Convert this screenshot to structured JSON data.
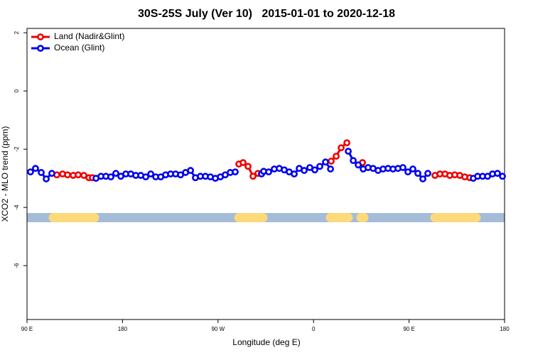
{
  "chart_data": {
    "type": "line",
    "title": "30S-25S July (Ver 10)   2015-01-01 to 2020-12-18",
    "x_label": "Longitude (deg E)",
    "y_label": "XCO2 - MLO trend (ppm)",
    "xlim": [
      90,
      540
    ],
    "ylim": [
      -7.85,
      2.15
    ],
    "xticks": [
      {
        "value": 90,
        "label": "90 E"
      },
      180,
      {
        "value": 270,
        "label": "90 W"
      },
      {
        "value": 360,
        "label": "0"
      },
      {
        "value": 450,
        "label": "90 E"
      },
      {
        "value": 540,
        "label": "180"
      }
    ],
    "yticks": [
      -6,
      -4,
      -2,
      0,
      2
    ],
    "legend": "top-left",
    "series": [
      {
        "name": "Land (Nadir&Glint)",
        "color": "#ee0000",
        "x": [
          118.1,
          123.5,
          128.2,
          133.5,
          138.2,
          143.6,
          148.3,
          151.6,
          null,
          289.6,
          293.6,
          298.3,
          303,
          307.6,
          311,
          null,
          376.6,
          381.3,
          386,
          391.4,
          null,
          406.1,
          null,
          474.4,
          479.1,
          483.8,
          488.4,
          493.1,
          497.8,
          502.5,
          507.2
        ],
        "values": [
          -2.88,
          -2.85,
          -2.88,
          -2.9,
          -2.88,
          -2.9,
          -2.98,
          -2.98,
          null,
          -2.51,
          -2.46,
          -2.59,
          -2.93,
          -2.83,
          -2.83,
          null,
          -2.41,
          -2.24,
          -1.95,
          -1.78,
          null,
          -2.46,
          null,
          -2.9,
          -2.85,
          -2.85,
          -2.9,
          -2.88,
          -2.9,
          -2.95,
          -2.98
        ]
      },
      {
        "name": "Ocean (Glint)",
        "color": "#0000ee",
        "x": [
          93.3,
          98,
          103.4,
          108.1,
          113.4,
          null,
          155,
          159.7,
          164.3,
          169,
          173.7,
          178.4,
          183.1,
          187.8,
          192.5,
          197.2,
          201.9,
          206.6,
          211.3,
          216,
          220.6,
          225.3,
          230,
          234.7,
          239.4,
          244.1,
          248.7,
          253.4,
          258.1,
          262.8,
          267.5,
          272.2,
          276.8,
          281.5,
          286.2,
          null,
          311,
          313,
          317.7,
          323,
          327.7,
          332.4,
          337.1,
          341.8,
          346.5,
          351.2,
          356.5,
          361.2,
          365.9,
          371.3,
          376,
          null,
          392.7,
          397.4,
          402.1,
          406.8,
          411.4,
          416.1,
          420.8,
          425.5,
          430.2,
          434.9,
          439.6,
          444.2,
          448.9,
          453.6,
          458.3,
          463,
          467.7,
          null,
          510.5,
          514.6,
          519.3,
          524,
          528.6,
          533.3,
          538
        ],
        "values": [
          -2.78,
          -2.66,
          -2.8,
          -3.02,
          -2.83,
          null,
          -3,
          -2.93,
          -2.93,
          -2.95,
          -2.83,
          -2.93,
          -2.85,
          -2.85,
          -2.9,
          -2.9,
          -2.95,
          -2.85,
          -2.95,
          -2.95,
          -2.88,
          -2.85,
          -2.85,
          -2.88,
          -2.8,
          -2.73,
          -2.98,
          -2.93,
          -2.93,
          -2.95,
          -3,
          -2.95,
          -2.88,
          -2.8,
          -2.78,
          null,
          -2.85,
          -2.76,
          -2.78,
          -2.68,
          -2.66,
          -2.71,
          -2.78,
          -2.85,
          -2.66,
          -2.73,
          -2.63,
          -2.71,
          -2.59,
          -2.44,
          -2.68,
          null,
          -2.07,
          -2.39,
          -2.54,
          -2.68,
          -2.63,
          -2.66,
          -2.73,
          -2.68,
          -2.66,
          -2.68,
          -2.66,
          -2.63,
          -2.78,
          -2.68,
          -2.83,
          -3.02,
          -2.83,
          null,
          -3,
          -2.93,
          -2.93,
          -2.93,
          -2.85,
          -2.83,
          -2.93
        ]
      }
    ],
    "land_mask": {
      "y": -4.35,
      "ocean_color": "#a4bcd8",
      "land_color": "#fcd97a",
      "segments": [
        [
          114.8,
          153.6
        ],
        [
          289.6,
          312.3
        ],
        [
          375.9,
          392.7
        ],
        [
          404.7,
          407.4
        ],
        [
          474.4,
          513.2
        ]
      ]
    }
  }
}
